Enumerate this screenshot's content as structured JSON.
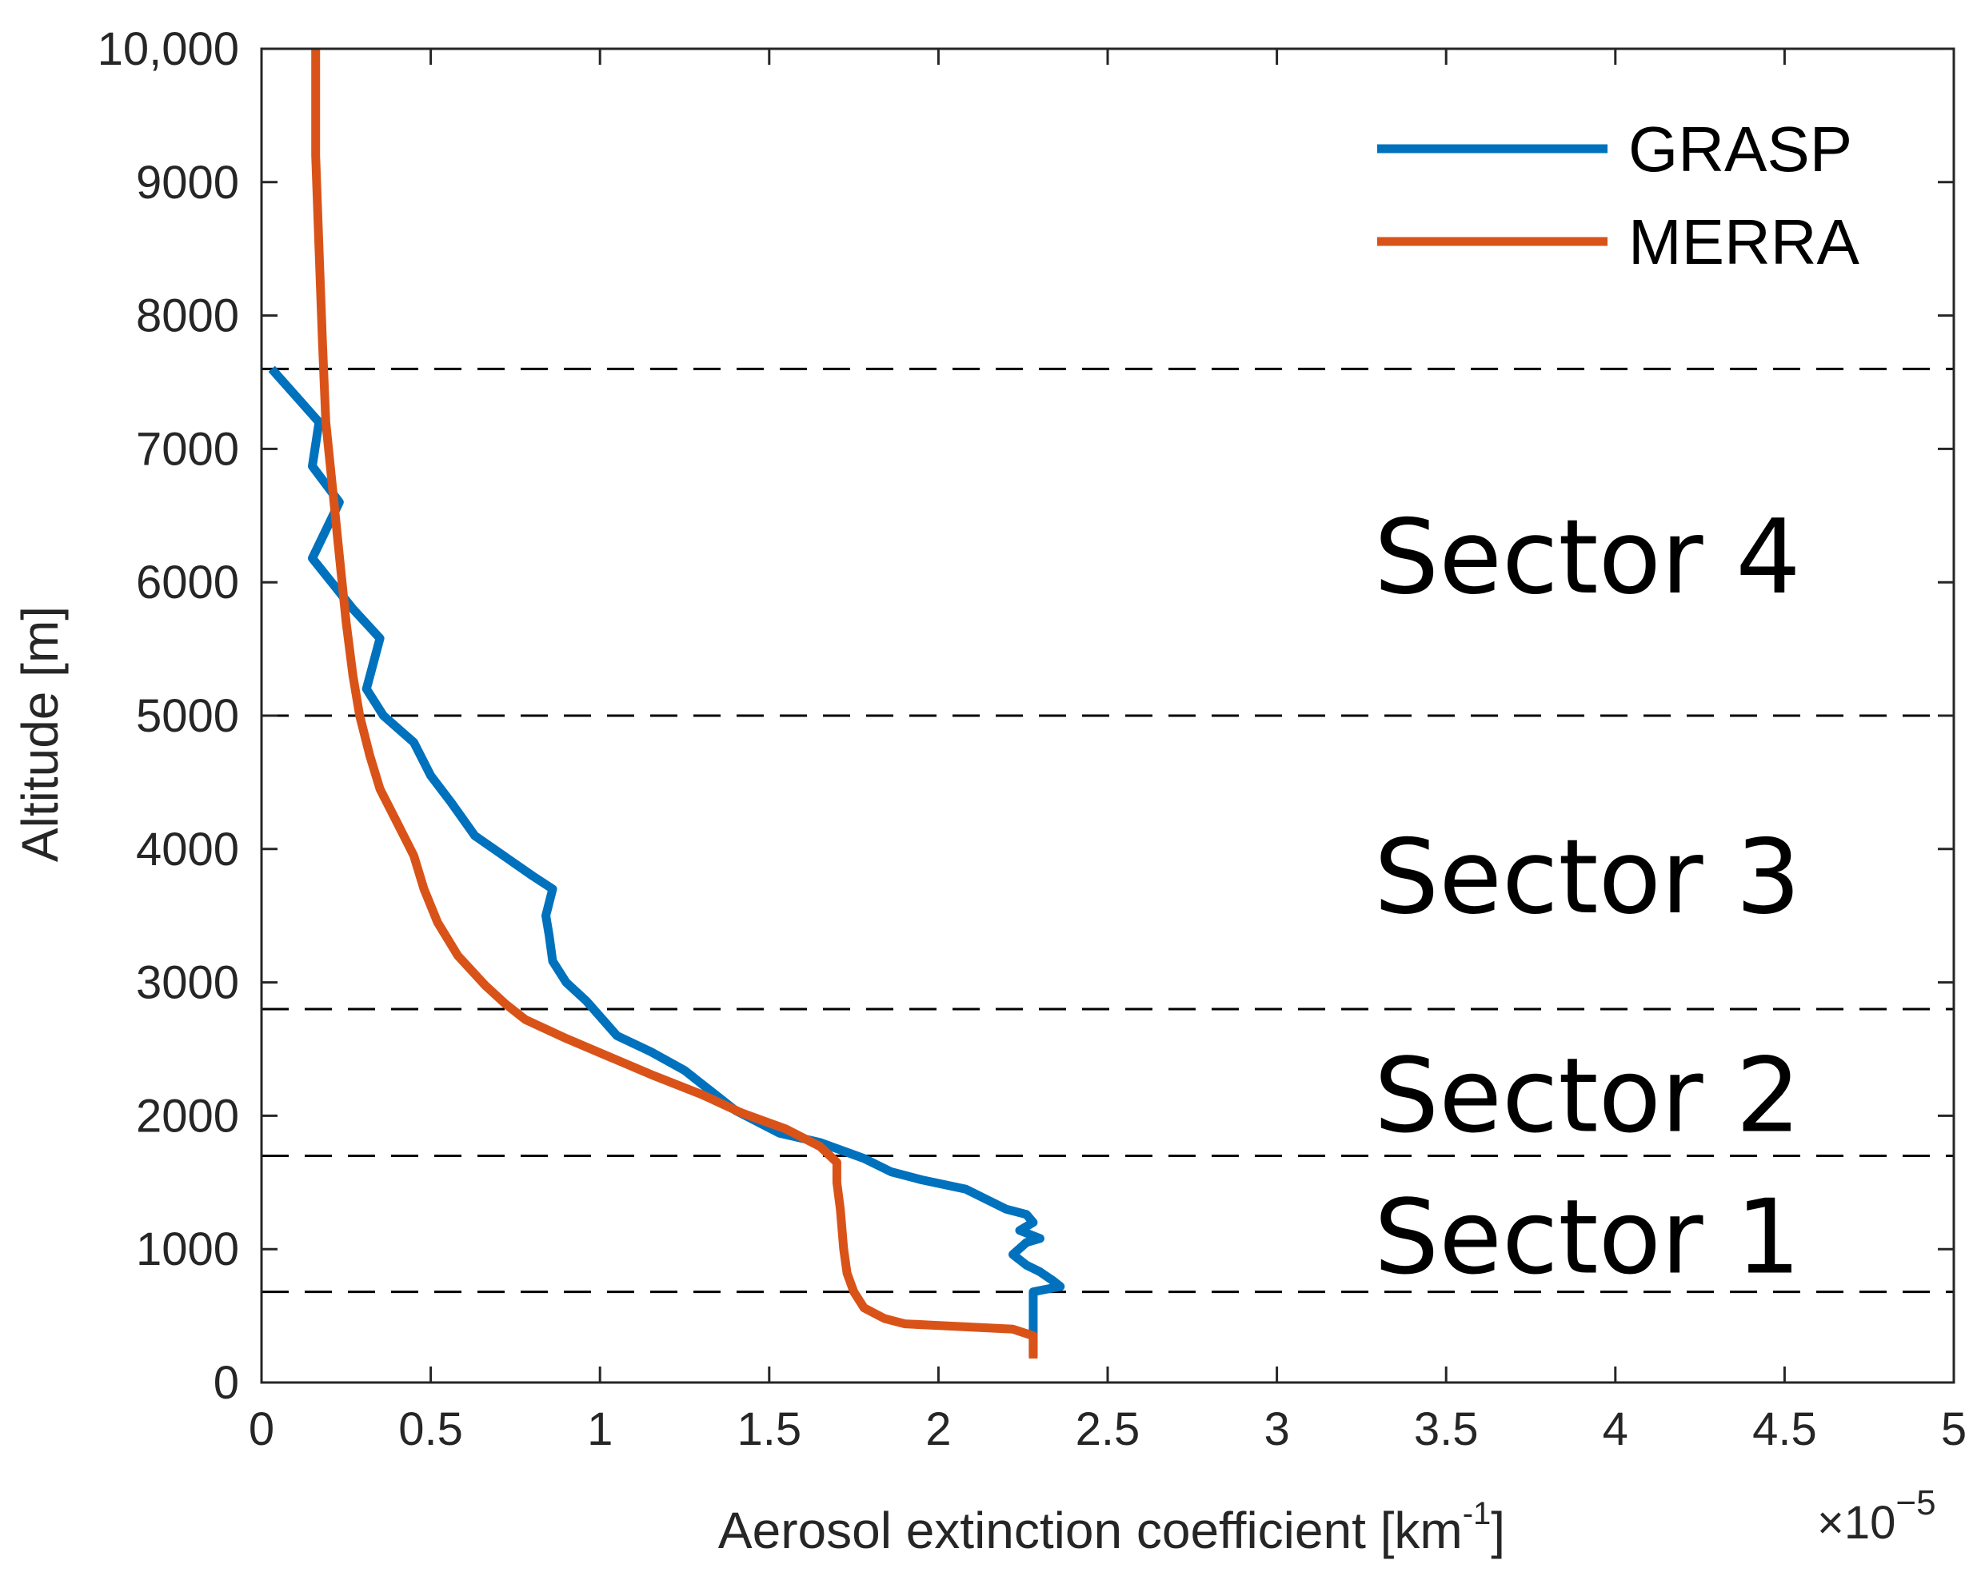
{
  "chart_data": {
    "type": "line",
    "xlabel": "Aerosol extinction coefficient [km",
    "xlabel_superscript": "-1",
    "xlabel_suffix": "]",
    "ylabel": "Altitude [m]",
    "x_multiplier_prefix": "×10",
    "x_multiplier_exponent": "−5",
    "xlim": [
      0,
      5
    ],
    "ylim": [
      0,
      10000
    ],
    "x_ticks": [
      0,
      0.5,
      1,
      1.5,
      2,
      2.5,
      3,
      3.5,
      4,
      4.5,
      5
    ],
    "x_tick_labels": [
      "0",
      "0.5",
      "1",
      "1.5",
      "2",
      "2.5",
      "3",
      "3.5",
      "4",
      "4.5",
      "5"
    ],
    "y_ticks": [
      0,
      1000,
      2000,
      3000,
      4000,
      5000,
      6000,
      7000,
      8000,
      9000,
      10000
    ],
    "y_tick_labels": [
      "0",
      "1000",
      "2000",
      "3000",
      "4000",
      "5000",
      "6000",
      "7000",
      "8000",
      "9000",
      "10,000"
    ],
    "legend_position": "top-right",
    "series": [
      {
        "name": "GRASP",
        "color": "#0072BD",
        "points": [
          [
            2.28,
            200
          ],
          [
            2.28,
            680
          ],
          [
            2.36,
            720
          ],
          [
            2.34,
            760
          ],
          [
            2.3,
            830
          ],
          [
            2.26,
            880
          ],
          [
            2.22,
            960
          ],
          [
            2.26,
            1050
          ],
          [
            2.3,
            1080
          ],
          [
            2.24,
            1140
          ],
          [
            2.28,
            1200
          ],
          [
            2.26,
            1260
          ],
          [
            2.2,
            1300
          ],
          [
            2.08,
            1450
          ],
          [
            1.95,
            1520
          ],
          [
            1.86,
            1580
          ],
          [
            1.78,
            1680
          ],
          [
            1.65,
            1800
          ],
          [
            1.53,
            1870
          ],
          [
            1.4,
            2040
          ],
          [
            1.25,
            2340
          ],
          [
            1.15,
            2480
          ],
          [
            1.05,
            2600
          ],
          [
            0.96,
            2860
          ],
          [
            0.9,
            3000
          ],
          [
            0.86,
            3160
          ],
          [
            0.85,
            3350
          ],
          [
            0.84,
            3500
          ],
          [
            0.86,
            3700
          ],
          [
            0.8,
            3800
          ],
          [
            0.63,
            4100
          ],
          [
            0.56,
            4350
          ],
          [
            0.5,
            4550
          ],
          [
            0.45,
            4800
          ],
          [
            0.36,
            5000
          ],
          [
            0.31,
            5200
          ],
          [
            0.35,
            5580
          ],
          [
            0.27,
            5800
          ],
          [
            0.15,
            6180
          ],
          [
            0.23,
            6600
          ],
          [
            0.15,
            6870
          ],
          [
            0.17,
            7200
          ],
          [
            0.03,
            7600
          ]
        ]
      },
      {
        "name": "MERRA",
        "color": "#D95319",
        "points": [
          [
            2.28,
            180
          ],
          [
            2.28,
            350
          ],
          [
            2.22,
            400
          ],
          [
            1.9,
            440
          ],
          [
            1.84,
            480
          ],
          [
            1.78,
            560
          ],
          [
            1.75,
            680
          ],
          [
            1.73,
            820
          ],
          [
            1.72,
            1000
          ],
          [
            1.71,
            1300
          ],
          [
            1.7,
            1500
          ],
          [
            1.7,
            1650
          ],
          [
            1.65,
            1770
          ],
          [
            1.55,
            1900
          ],
          [
            1.42,
            2020
          ],
          [
            1.3,
            2160
          ],
          [
            1.16,
            2300
          ],
          [
            1.02,
            2450
          ],
          [
            0.9,
            2580
          ],
          [
            0.78,
            2720
          ],
          [
            0.72,
            2840
          ],
          [
            0.66,
            2980
          ],
          [
            0.58,
            3200
          ],
          [
            0.52,
            3450
          ],
          [
            0.48,
            3700
          ],
          [
            0.45,
            3950
          ],
          [
            0.4,
            4200
          ],
          [
            0.35,
            4450
          ],
          [
            0.32,
            4700
          ],
          [
            0.29,
            5000
          ],
          [
            0.27,
            5300
          ],
          [
            0.25,
            5700
          ],
          [
            0.23,
            6200
          ],
          [
            0.21,
            6700
          ],
          [
            0.19,
            7200
          ],
          [
            0.18,
            7800
          ],
          [
            0.17,
            8500
          ],
          [
            0.16,
            9200
          ],
          [
            0.16,
            10000
          ]
        ]
      }
    ],
    "reference_lines": {
      "orientation": "horizontal",
      "style": "dashed",
      "y_values": [
        680,
        1700,
        2800,
        5000,
        7600
      ]
    },
    "annotations": [
      {
        "text": "Sector 4",
        "y": 6200
      },
      {
        "text": "Sector 3",
        "y": 3800
      },
      {
        "text": "Sector 2",
        "y": 2160
      },
      {
        "text": "Sector 1",
        "y": 1100
      }
    ]
  }
}
